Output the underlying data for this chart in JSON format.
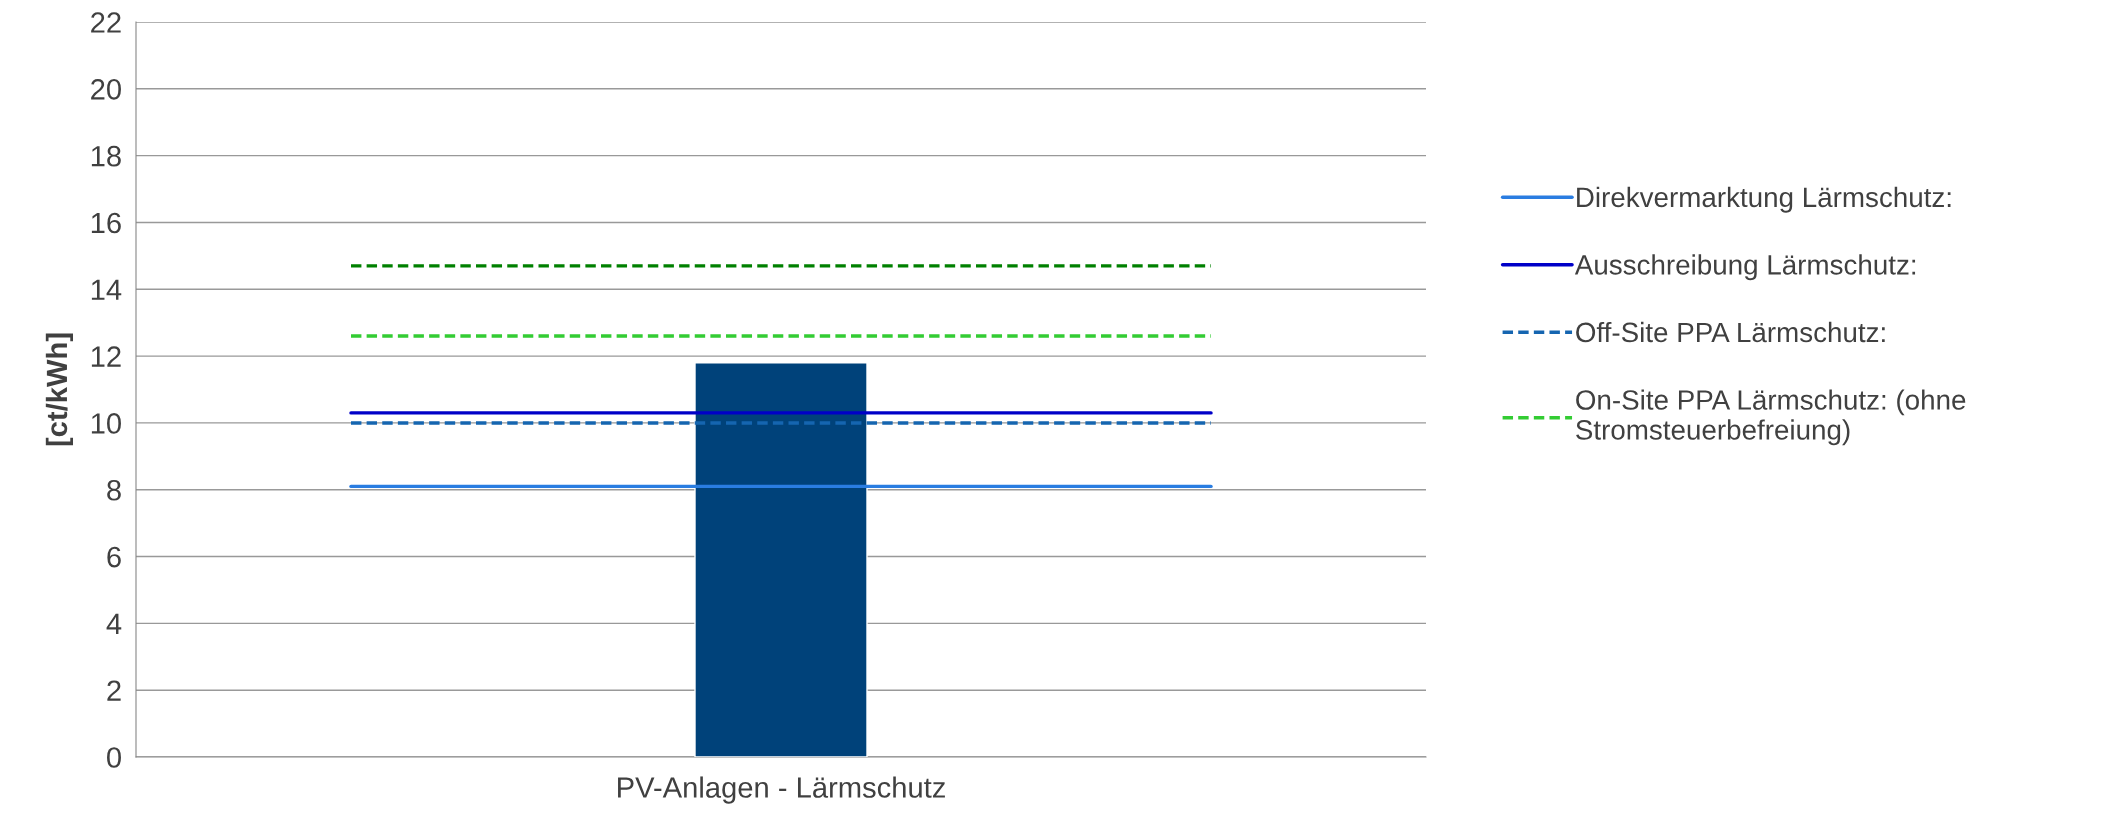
{
  "chart_data": {
    "type": "bar",
    "ylabel": "[ct/kWh]",
    "categories": [
      null,
      "PV-Anlagen - Lärmschutz",
      null
    ],
    "series": [
      {
        "color": "#00427a",
        "values": [
          null,
          11.8,
          null
        ]
      },
      {
        "type": "line",
        "name": "Direkvermarktung Lärmschutz:",
        "color": "#2a7de1",
        "line_style": "solid",
        "values": [
          8.1,
          8.1,
          8.1
        ]
      },
      {
        "type": "line",
        "name": "Ausschreibung Lärmschutz:",
        "color": "#0000c8",
        "line_style": "solid",
        "values": [
          10.3,
          10.3,
          10.3
        ]
      },
      {
        "type": "line",
        "name": "Off-Site PPA Lärmschutz:",
        "color": "#1565b0",
        "line_style": "dashed",
        "values": [
          10.0,
          10.0,
          10.0
        ]
      },
      {
        "type": "line",
        "name": "On-Site PPA Lärmschutz: (ohne\nStromsteuerbefreiung)",
        "color": "#33cc33",
        "line_style": "dashed",
        "values": [
          12.6,
          12.6,
          12.6
        ]
      },
      {
        "type": "line",
        "color": "#008000",
        "line_style": "dashed",
        "values": [
          14.7,
          14.7,
          14.7
        ]
      }
    ],
    "ylim": [
      0,
      22
    ],
    "yticks": [
      0,
      2,
      4,
      6,
      8,
      10,
      12,
      14,
      16,
      18,
      20,
      22
    ],
    "grid": "y",
    "legend": "right"
  }
}
